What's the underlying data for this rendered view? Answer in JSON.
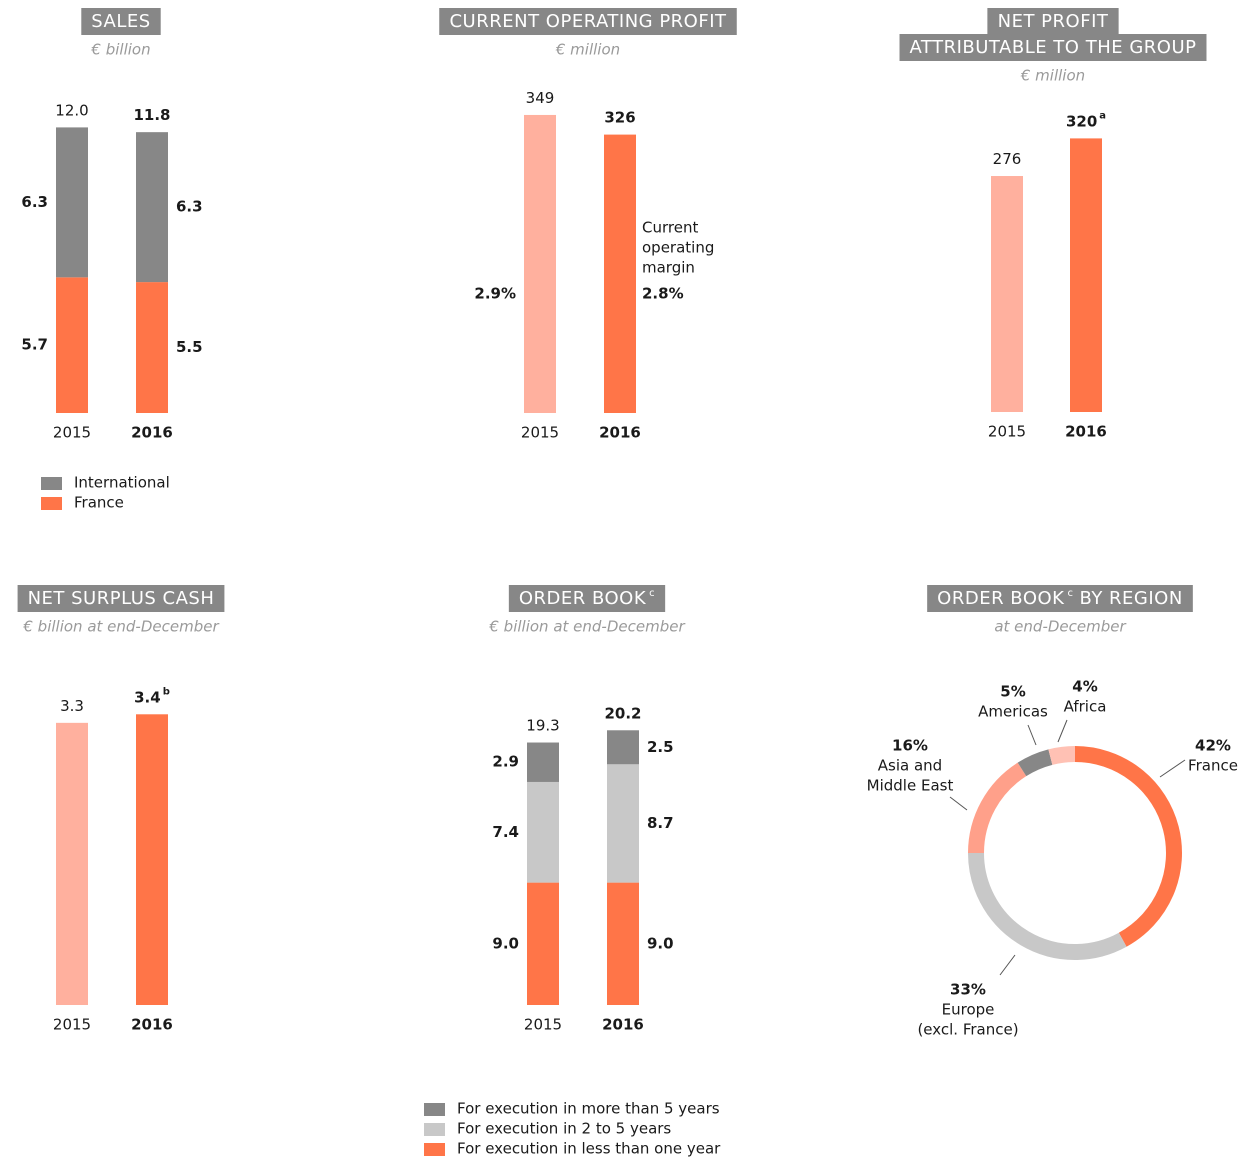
{
  "chart_data": [
    {
      "type": "stacked-bar",
      "title": "SALES",
      "subtitle": "€ billion",
      "categories": [
        "2015",
        "2016"
      ],
      "totals": [
        12.0,
        11.8
      ],
      "total_labels": [
        "12.0",
        "11.8"
      ],
      "series": [
        {
          "name": "France",
          "color": "#ff7548",
          "values": [
            5.7,
            5.5
          ]
        },
        {
          "name": "International",
          "color": "#878787",
          "values": [
            6.3,
            6.3
          ]
        }
      ]
    },
    {
      "type": "bar",
      "title": "CURRENT OPERATING PROFIT",
      "subtitle": "€ million",
      "categories": [
        "2015",
        "2016"
      ],
      "values": [
        349,
        326
      ],
      "colors": [
        "#ffb09e",
        "#ff7548"
      ],
      "annotation": [
        "Current",
        "operating",
        "margin"
      ],
      "margin_labels": [
        "2.9%",
        "2.8%"
      ]
    },
    {
      "type": "bar",
      "title": [
        "NET PROFIT",
        "ATTRIBUTABLE TO THE GROUP"
      ],
      "subtitle": "€ million",
      "categories": [
        "2015",
        "2016"
      ],
      "values": [
        276,
        320
      ],
      "value_notes": [
        null,
        "a"
      ],
      "colors": [
        "#ffb09e",
        "#ff7548"
      ]
    },
    {
      "type": "bar",
      "title": "NET SURPLUS CASH",
      "subtitle": "€ billion at end-December",
      "categories": [
        "2015",
        "2016"
      ],
      "values": [
        3.3,
        3.4
      ],
      "value_notes": [
        null,
        "b"
      ],
      "colors": [
        "#ffb09e",
        "#ff7548"
      ]
    },
    {
      "type": "stacked-bar",
      "title": "ORDER BOOK",
      "title_note": "c",
      "subtitle": "€ billion at end-December",
      "categories": [
        "2015",
        "2016"
      ],
      "totals": [
        19.3,
        20.2
      ],
      "total_labels": [
        "19.3",
        "20.2"
      ],
      "series": [
        {
          "name": "For execution in less than one year",
          "color": "#ff7548",
          "values": [
            9.0,
            9.0
          ],
          "value_labels": [
            "9.0",
            "9.0"
          ]
        },
        {
          "name": "For execution in 2 to 5 years",
          "color": "#c8c8c8",
          "values": [
            7.4,
            8.7
          ]
        },
        {
          "name": "For execution in more than 5 years",
          "color": "#878787",
          "values": [
            2.9,
            2.5
          ]
        }
      ]
    },
    {
      "type": "donut",
      "title": "ORDER BOOK",
      "title_note": "c",
      "title_suffix": "BY REGION",
      "subtitle": "at end-December",
      "labels": [
        [
          "France"
        ],
        [
          "Europe",
          "(excl. France)"
        ],
        [
          "Asia and",
          "Middle East"
        ],
        [
          "Americas"
        ],
        [
          "Africa"
        ]
      ],
      "values": [
        42,
        33,
        16,
        5,
        4
      ],
      "value_labels": [
        "42%",
        "33%",
        "16%",
        "5%",
        "4%"
      ],
      "colors": [
        "#ff7548",
        "#c8c8c8",
        "#ffa08a",
        "#878787",
        "#ffc1b4"
      ]
    }
  ]
}
